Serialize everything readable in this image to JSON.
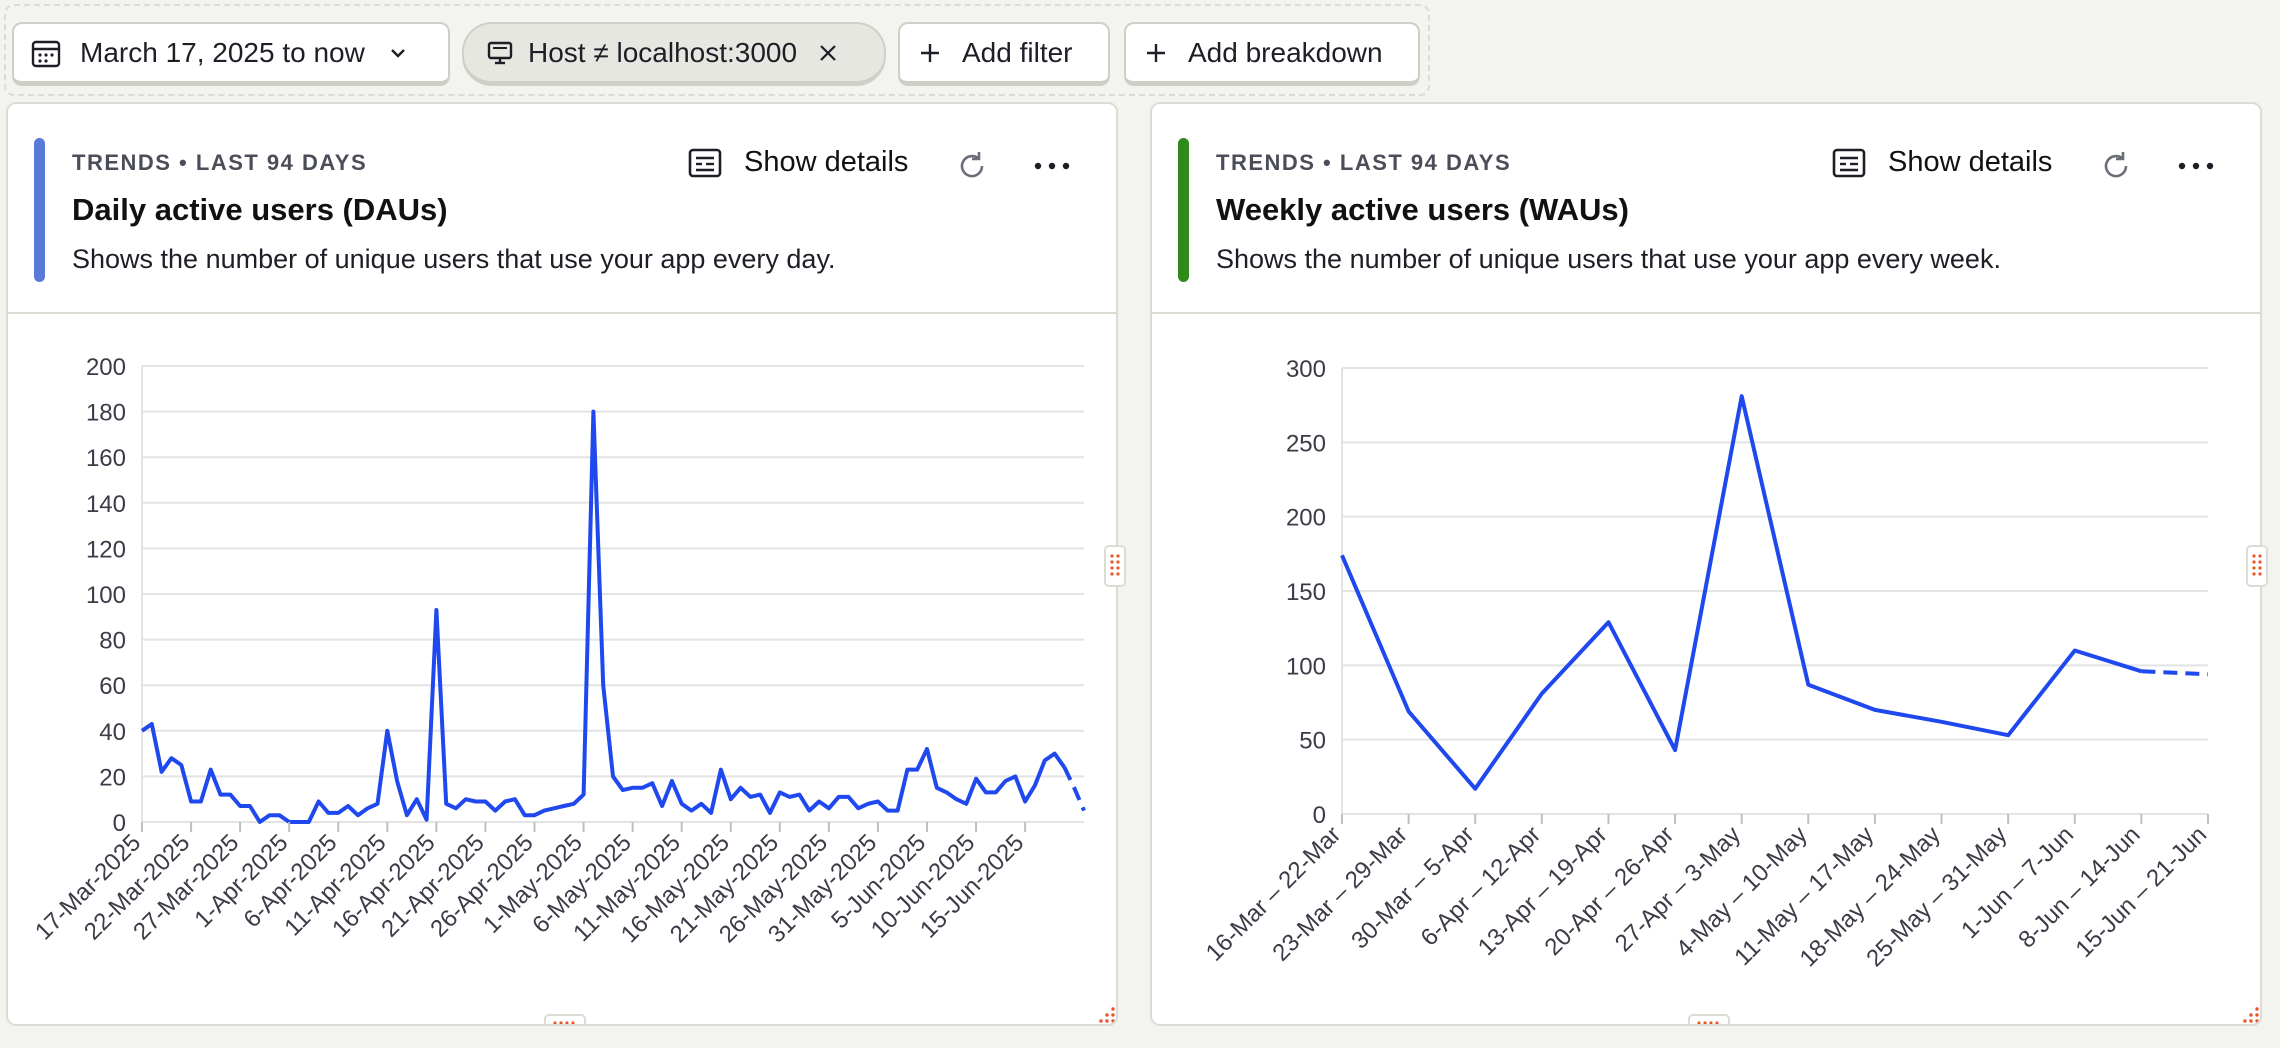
{
  "filters": {
    "date_range": "March 17, 2025 to now",
    "property_filter": "Host ≠ localhost:3000",
    "add_filter": "Add filter",
    "add_breakdown": "Add breakdown"
  },
  "colors": {
    "accent_dau": "#5a7ad8",
    "accent_wau": "#2f8a1c",
    "series": "#1f48ef",
    "handle": "#e8562a"
  },
  "cards": [
    {
      "meta": "TRENDS • LAST 94 DAYS",
      "title": "Daily active users (DAUs)",
      "description": "Shows the number of unique users that use your app every day.",
      "show_details": "Show details",
      "icons": [
        "details-icon",
        "refresh-icon",
        "more-icon"
      ],
      "chart_data": {
        "type": "line",
        "ylim": [
          0,
          200
        ],
        "yticks": [
          "0",
          "20",
          "40",
          "60",
          "80",
          "100",
          "120",
          "140",
          "160",
          "180",
          "200"
        ],
        "x_labels": [
          "17-Mar-2025",
          "22-Mar-2025",
          "27-Mar-2025",
          "1-Apr-2025",
          "6-Apr-2025",
          "11-Apr-2025",
          "16-Apr-2025",
          "21-Apr-2025",
          "26-Apr-2025",
          "1-May-2025",
          "6-May-2025",
          "11-May-2025",
          "16-May-2025",
          "21-May-2025",
          "26-May-2025",
          "31-May-2025",
          "5-Jun-2025",
          "10-Jun-2025",
          "15-Jun-2025"
        ],
        "values": [
          40,
          43,
          22,
          28,
          25,
          9,
          9,
          23,
          12,
          12,
          7,
          7,
          0,
          3,
          3,
          0,
          0,
          0,
          9,
          4,
          4,
          7,
          3,
          6,
          8,
          40,
          18,
          3,
          10,
          1,
          93,
          8,
          6,
          10,
          9,
          9,
          5,
          9,
          10,
          3,
          3,
          5,
          6,
          7,
          8,
          12,
          180,
          60,
          20,
          14,
          15,
          15,
          17,
          7,
          18,
          8,
          5,
          8,
          4,
          23,
          10,
          15,
          11,
          12,
          4,
          13,
          11,
          12,
          5,
          9,
          6,
          11,
          11,
          6,
          8,
          9,
          5,
          5,
          23,
          23,
          32,
          15,
          13,
          10,
          8,
          19,
          13,
          13,
          18,
          20,
          9,
          16,
          27,
          30,
          24,
          15,
          5
        ],
        "dashed_tail": 2
      }
    },
    {
      "meta": "TRENDS • LAST 94 DAYS",
      "title": "Weekly active users (WAUs)",
      "description": "Shows the number of unique users that use your app every week.",
      "show_details": "Show details",
      "icons": [
        "details-icon",
        "refresh-icon",
        "more-icon"
      ],
      "chart_data": {
        "type": "line",
        "ylim": [
          0,
          300
        ],
        "yticks": [
          "0",
          "50",
          "100",
          "150",
          "200",
          "250",
          "300"
        ],
        "categories": [
          "16-Mar – 22-Mar",
          "23-Mar – 29-Mar",
          "30-Mar – 5-Apr",
          "6-Apr – 12-Apr",
          "13-Apr – 19-Apr",
          "20-Apr – 26-Apr",
          "27-Apr – 3-May",
          "4-May – 10-May",
          "11-May – 17-May",
          "18-May – 24-May",
          "25-May – 31-May",
          "1-Jun – 7-Jun",
          "8-Jun – 14-Jun",
          "15-Jun – 21-Jun"
        ],
        "values": [
          174,
          69,
          17,
          81,
          129,
          43,
          281,
          87,
          70,
          62,
          53,
          110,
          96,
          94
        ],
        "dashed_tail": 1
      }
    }
  ]
}
